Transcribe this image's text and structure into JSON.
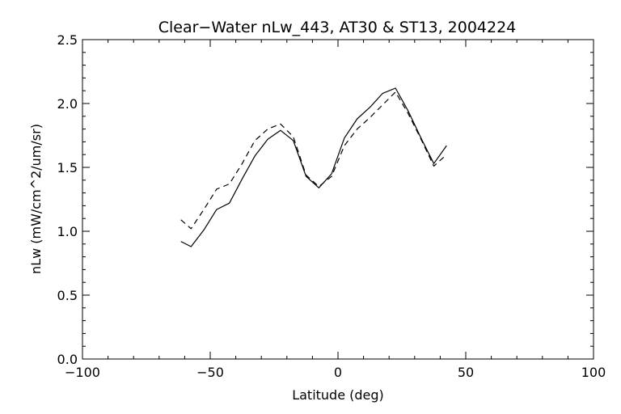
{
  "chart_data": {
    "type": "line",
    "title": "Clear−Water nLw_443, AT30 & ST13, 2004224",
    "xlabel": "Latitude (deg)",
    "ylabel": "nLw (mW/cm^2/um/sr)",
    "xlim": [
      -100,
      100
    ],
    "ylim": [
      0.0,
      2.5
    ],
    "x_ticks": [
      -100,
      -50,
      0,
      50,
      100
    ],
    "y_ticks": [
      0.0,
      0.5,
      1.0,
      1.5,
      2.0,
      2.5
    ],
    "x_tick_labels": [
      "−100",
      "−50",
      "0",
      "50",
      "100"
    ],
    "y_tick_labels": [
      "0.0",
      "0.5",
      "1.0",
      "1.5",
      "2.0",
      "2.5"
    ],
    "grid": false,
    "series": [
      {
        "style": "solid",
        "x": [
          -61.5,
          -57.5,
          -52.5,
          -47.5,
          -42.5,
          -37.5,
          -32.5,
          -27.5,
          -22.5,
          -17.5,
          -12.5,
          -7.5,
          -2.5,
          2.5,
          7.5,
          12.5,
          17.5,
          22.5,
          27.5,
          32.5,
          37.5,
          42.5
        ],
        "y": [
          0.92,
          0.88,
          1.01,
          1.17,
          1.22,
          1.41,
          1.59,
          1.72,
          1.79,
          1.71,
          1.43,
          1.34,
          1.45,
          1.73,
          1.88,
          1.97,
          2.08,
          2.12,
          1.94,
          1.73,
          1.53,
          1.67
        ]
      },
      {
        "style": "dashed",
        "x": [
          -61.5,
          -57.5,
          -52.5,
          -47.5,
          -42.5,
          -37.5,
          -32.5,
          -27.5,
          -22.5,
          -17.5,
          -12.5,
          -7.5,
          -2.5,
          2.5,
          7.5,
          12.5,
          17.5,
          22.5,
          27.5,
          32.5,
          37.5,
          42.5
        ],
        "y": [
          1.09,
          1.02,
          1.17,
          1.33,
          1.37,
          1.53,
          1.71,
          1.8,
          1.84,
          1.74,
          1.44,
          1.35,
          1.43,
          1.67,
          1.8,
          1.89,
          1.99,
          2.09,
          1.92,
          1.72,
          1.51,
          1.6
        ]
      }
    ]
  }
}
